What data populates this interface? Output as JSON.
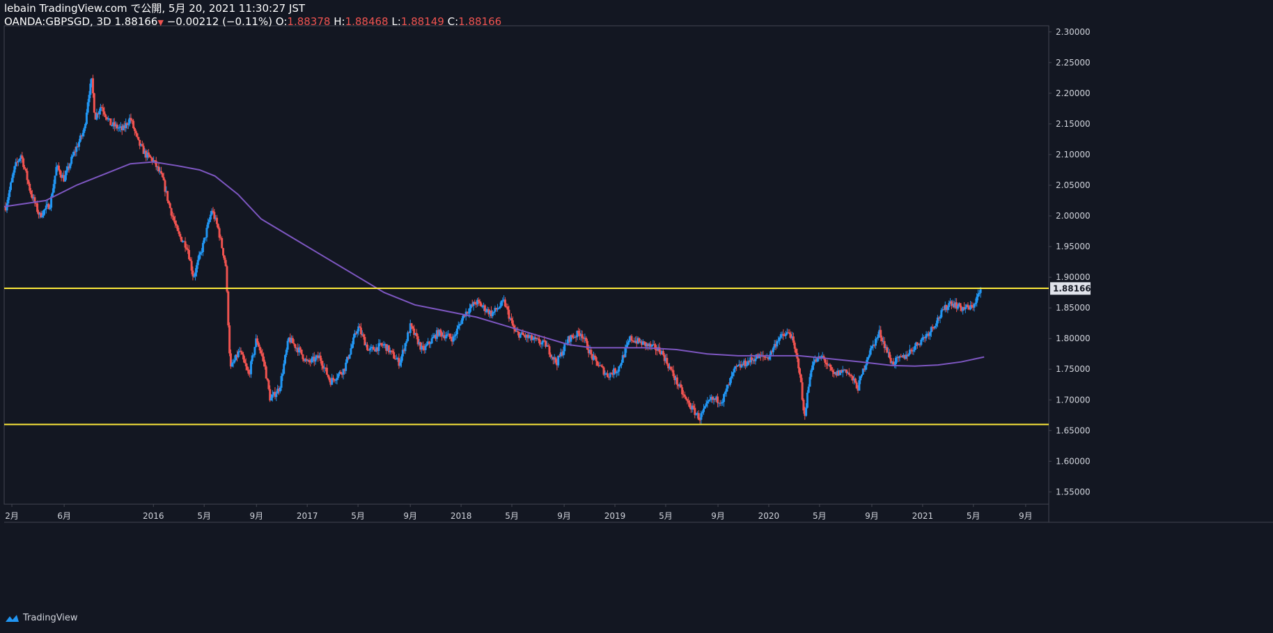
{
  "header": {
    "line1": "lebain TradingView.com で公開, 5月 20, 2021 11:30:27 JST",
    "symbol": "OANDA:GBPSGD, 3D",
    "last_price": "1.88166",
    "change_arrow": "▼",
    "change": "−0.00212 (−0.11%)",
    "o_label": "O:",
    "o_value": "1.88378",
    "h_label": "H:",
    "h_value": "1.88468",
    "l_label": "L:",
    "l_value": "1.88149",
    "c_label": "C:",
    "c_value": "1.88166"
  },
  "footer": {
    "brand": "TradingView"
  },
  "colors": {
    "background": "#131722",
    "up": "#2196f3",
    "down": "#ef5350",
    "ma": "#7e57c2",
    "level": "#ffeb3b",
    "grid": "#2a2e39"
  },
  "chart_data": {
    "type": "candlestick",
    "title": "OANDA:GBPSGD, 3D",
    "ylim": [
      1.53,
      2.31
    ],
    "y_ticks": [
      "2.30000",
      "2.25000",
      "2.20000",
      "2.15000",
      "2.10000",
      "2.05000",
      "2.00000",
      "1.95000",
      "1.90000",
      "1.85000",
      "1.80000",
      "1.75000",
      "1.70000",
      "1.65000",
      "1.60000",
      "1.55000"
    ],
    "y_tick_values": [
      2.3,
      2.25,
      2.2,
      2.15,
      2.1,
      2.05,
      2.0,
      1.95,
      1.9,
      1.85,
      1.8,
      1.75,
      1.7,
      1.65,
      1.6,
      1.55
    ],
    "x_range": [
      2015.03,
      2021.82
    ],
    "x_ticks": [
      {
        "label": "2月",
        "t": 2015.08
      },
      {
        "label": "6月",
        "t": 2015.42
      },
      {
        "label": "2016",
        "t": 2016.0
      },
      {
        "label": "5月",
        "t": 2016.33
      },
      {
        "label": "9月",
        "t": 2016.67
      },
      {
        "label": "2017",
        "t": 2017.0
      },
      {
        "label": "5月",
        "t": 2017.33
      },
      {
        "label": "9月",
        "t": 2017.67
      },
      {
        "label": "2018",
        "t": 2018.0
      },
      {
        "label": "5月",
        "t": 2018.33
      },
      {
        "label": "9月",
        "t": 2018.67
      },
      {
        "label": "2019",
        "t": 2019.0
      },
      {
        "label": "5月",
        "t": 2019.33
      },
      {
        "label": "9月",
        "t": 2019.67
      },
      {
        "label": "2020",
        "t": 2020.0
      },
      {
        "label": "5月",
        "t": 2020.33
      },
      {
        "label": "9月",
        "t": 2020.67
      },
      {
        "label": "2021",
        "t": 2021.0
      },
      {
        "label": "5月",
        "t": 2021.33
      },
      {
        "label": "9月",
        "t": 2021.67
      }
    ],
    "price_anchors": [
      [
        2015.04,
        2.015
      ],
      [
        2015.1,
        2.08
      ],
      [
        2015.14,
        2.1
      ],
      [
        2015.2,
        2.04
      ],
      [
        2015.26,
        2.0
      ],
      [
        2015.33,
        2.02
      ],
      [
        2015.37,
        2.08
      ],
      [
        2015.42,
        2.06
      ],
      [
        2015.48,
        2.1
      ],
      [
        2015.55,
        2.14
      ],
      [
        2015.58,
        2.2
      ],
      [
        2015.6,
        2.22
      ],
      [
        2015.62,
        2.16
      ],
      [
        2015.66,
        2.18
      ],
      [
        2015.72,
        2.15
      ],
      [
        2015.8,
        2.14
      ],
      [
        2015.85,
        2.16
      ],
      [
        2015.9,
        2.12
      ],
      [
        2015.95,
        2.1
      ],
      [
        2016.0,
        2.09
      ],
      [
        2016.06,
        2.06
      ],
      [
        2016.1,
        2.02
      ],
      [
        2016.16,
        1.97
      ],
      [
        2016.22,
        1.95
      ],
      [
        2016.26,
        1.9
      ],
      [
        2016.32,
        1.95
      ],
      [
        2016.38,
        2.01
      ],
      [
        2016.42,
        1.98
      ],
      [
        2016.47,
        1.92
      ],
      [
        2016.5,
        1.75
      ],
      [
        2016.56,
        1.78
      ],
      [
        2016.62,
        1.74
      ],
      [
        2016.67,
        1.8
      ],
      [
        2016.72,
        1.76
      ],
      [
        2016.76,
        1.7
      ],
      [
        2016.82,
        1.72
      ],
      [
        2016.88,
        1.8
      ],
      [
        2016.95,
        1.78
      ],
      [
        2017.0,
        1.76
      ],
      [
        2017.08,
        1.77
      ],
      [
        2017.15,
        1.73
      ],
      [
        2017.24,
        1.75
      ],
      [
        2017.33,
        1.82
      ],
      [
        2017.4,
        1.78
      ],
      [
        2017.5,
        1.79
      ],
      [
        2017.6,
        1.76
      ],
      [
        2017.67,
        1.82
      ],
      [
        2017.75,
        1.78
      ],
      [
        2017.85,
        1.81
      ],
      [
        2017.95,
        1.8
      ],
      [
        2018.02,
        1.84
      ],
      [
        2018.1,
        1.86
      ],
      [
        2018.2,
        1.84
      ],
      [
        2018.28,
        1.86
      ],
      [
        2018.35,
        1.81
      ],
      [
        2018.45,
        1.8
      ],
      [
        2018.55,
        1.79
      ],
      [
        2018.62,
        1.76
      ],
      [
        2018.7,
        1.8
      ],
      [
        2018.78,
        1.81
      ],
      [
        2018.85,
        1.77
      ],
      [
        2018.95,
        1.74
      ],
      [
        2019.02,
        1.75
      ],
      [
        2019.1,
        1.8
      ],
      [
        2019.2,
        1.79
      ],
      [
        2019.3,
        1.78
      ],
      [
        2019.38,
        1.74
      ],
      [
        2019.46,
        1.7
      ],
      [
        2019.55,
        1.67
      ],
      [
        2019.62,
        1.7
      ],
      [
        2019.7,
        1.7
      ],
      [
        2019.78,
        1.75
      ],
      [
        2019.85,
        1.76
      ],
      [
        2019.92,
        1.77
      ],
      [
        2020.0,
        1.77
      ],
      [
        2020.06,
        1.8
      ],
      [
        2020.14,
        1.81
      ],
      [
        2020.2,
        1.75
      ],
      [
        2020.23,
        1.67
      ],
      [
        2020.28,
        1.76
      ],
      [
        2020.35,
        1.77
      ],
      [
        2020.42,
        1.74
      ],
      [
        2020.5,
        1.75
      ],
      [
        2020.58,
        1.72
      ],
      [
        2020.64,
        1.77
      ],
      [
        2020.72,
        1.81
      ],
      [
        2020.8,
        1.76
      ],
      [
        2020.88,
        1.77
      ],
      [
        2020.96,
        1.79
      ],
      [
        2021.04,
        1.81
      ],
      [
        2021.12,
        1.84
      ],
      [
        2021.18,
        1.86
      ],
      [
        2021.25,
        1.85
      ],
      [
        2021.32,
        1.85
      ],
      [
        2021.38,
        1.88
      ]
    ],
    "ma_anchors": [
      [
        2015.03,
        2.015
      ],
      [
        2015.3,
        2.025
      ],
      [
        2015.5,
        2.05
      ],
      [
        2015.7,
        2.07
      ],
      [
        2015.85,
        2.085
      ],
      [
        2016.0,
        2.088
      ],
      [
        2016.15,
        2.082
      ],
      [
        2016.3,
        2.075
      ],
      [
        2016.4,
        2.065
      ],
      [
        2016.55,
        2.035
      ],
      [
        2016.7,
        1.995
      ],
      [
        2016.9,
        1.965
      ],
      [
        2017.1,
        1.935
      ],
      [
        2017.3,
        1.905
      ],
      [
        2017.5,
        1.875
      ],
      [
        2017.7,
        1.855
      ],
      [
        2017.9,
        1.845
      ],
      [
        2018.1,
        1.835
      ],
      [
        2018.3,
        1.82
      ],
      [
        2018.5,
        1.805
      ],
      [
        2018.7,
        1.79
      ],
      [
        2018.85,
        1.785
      ],
      [
        2019.0,
        1.785
      ],
      [
        2019.2,
        1.785
      ],
      [
        2019.4,
        1.782
      ],
      [
        2019.6,
        1.775
      ],
      [
        2019.8,
        1.772
      ],
      [
        2020.0,
        1.772
      ],
      [
        2020.2,
        1.772
      ],
      [
        2020.4,
        1.767
      ],
      [
        2020.6,
        1.762
      ],
      [
        2020.8,
        1.756
      ],
      [
        2020.95,
        1.755
      ],
      [
        2021.1,
        1.757
      ],
      [
        2021.25,
        1.762
      ],
      [
        2021.4,
        1.77
      ]
    ],
    "horizontal_levels": [
      1.882,
      1.66
    ],
    "last_price_label": "1.88166",
    "series": [
      {
        "name": "GBPSGD 3D candles",
        "style": "candlestick"
      },
      {
        "name": "Moving average",
        "style": "line"
      }
    ]
  }
}
